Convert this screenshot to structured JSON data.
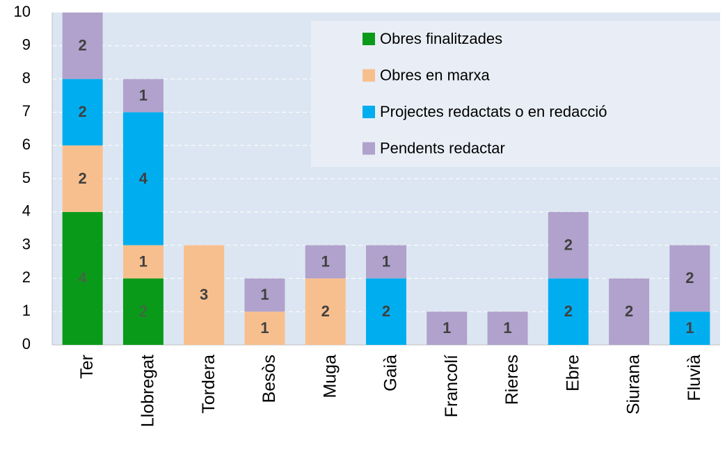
{
  "chart_data": {
    "type": "stacked_bar",
    "categories": [
      "Ter",
      "Llobregat",
      "Tordera",
      "Besòs",
      "Muga",
      "Gaià",
      "Francolí",
      "Rieres",
      "Ebre",
      "Siurana",
      "Fluvià"
    ],
    "series": [
      {
        "name": "Obres finalitzades",
        "color": "#0a9a1a",
        "values": [
          4,
          2,
          0,
          0,
          0,
          0,
          0,
          0,
          0,
          0,
          0
        ]
      },
      {
        "name": "Obres en marxa",
        "color": "#f8bf8e",
        "values": [
          2,
          1,
          3,
          1,
          2,
          0,
          0,
          0,
          0,
          0,
          0
        ]
      },
      {
        "name": "Projectes redactats o en redacció",
        "color": "#00aeef",
        "values": [
          2,
          4,
          0,
          0,
          0,
          2,
          0,
          0,
          2,
          0,
          1
        ]
      },
      {
        "name": "Pendents redactar",
        "color": "#b0a2cc",
        "values": [
          2,
          1,
          0,
          1,
          1,
          1,
          1,
          1,
          2,
          2,
          2
        ]
      }
    ],
    "ylim": [
      0,
      10
    ],
    "yticks": [
      0,
      1,
      2,
      3,
      4,
      5,
      6,
      7,
      8,
      9,
      10
    ],
    "grid": true,
    "legend": "top-right"
  }
}
